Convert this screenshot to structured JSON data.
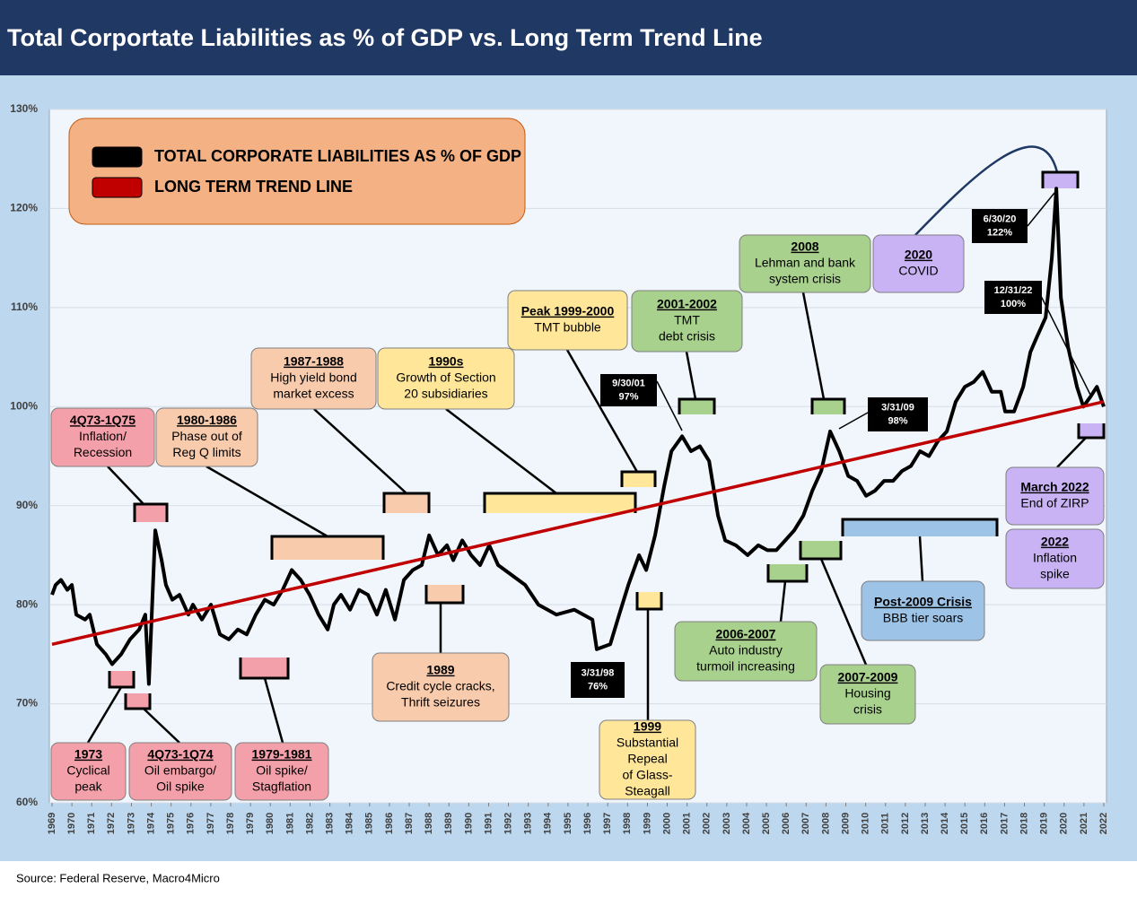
{
  "chart_data": {
    "type": "line",
    "title": "Total Corportate Liabilities as % of GDP vs. Long Term Trend Line",
    "source": "Source: Federal Reserve, Macro4Micro",
    "xlim": [
      1969,
      2022
    ],
    "xticks": [
      1969,
      1970,
      1971,
      1972,
      1973,
      1974,
      1975,
      1976,
      1977,
      1978,
      1979,
      1980,
      1981,
      1982,
      1983,
      1984,
      1985,
      1986,
      1987,
      1988,
      1989,
      1990,
      1991,
      1992,
      1993,
      1994,
      1995,
      1996,
      1997,
      1998,
      1999,
      2000,
      2001,
      2002,
      2003,
      2004,
      2005,
      2006,
      2007,
      2008,
      2009,
      2010,
      2011,
      2012,
      2013,
      2014,
      2015,
      2016,
      2017,
      2018,
      2019,
      2020,
      2021,
      2022
    ],
    "ylim": [
      60,
      130
    ],
    "yticks": [
      {
        "value": 60,
        "label": "60%"
      },
      {
        "value": 70,
        "label": "70%"
      },
      {
        "value": 80,
        "label": "80%"
      },
      {
        "value": 90,
        "label": "90%"
      },
      {
        "value": 100,
        "label": "100%"
      },
      {
        "value": 110,
        "label": "110%"
      },
      {
        "value": 120,
        "label": "120%"
      },
      {
        "value": 130,
        "label": "130%"
      }
    ],
    "grid": true,
    "legend_position": "upper left",
    "series": [
      {
        "name": "TOTAL CORPORATE LIABILITIES AS % OF GDP",
        "color": "#000000",
        "x": [
          1969,
          1969.18,
          1969.45,
          1969.77,
          1970,
          1970.22,
          1970.67,
          1970.9,
          1971.26,
          1971.71,
          1972.03,
          1972.48,
          1972.93,
          1973.39,
          1973.7,
          1973.88,
          1974.2,
          1974.52,
          1974.74,
          1975.06,
          1975.42,
          1975.87,
          1976.1,
          1976.55,
          1977.01,
          1977.46,
          1977.91,
          1978.36,
          1978.81,
          1979.27,
          1979.72,
          1980.17,
          1980.62,
          1981.08,
          1981.53,
          1981.98,
          1982.43,
          1982.89,
          1983.2,
          1983.56,
          1984.02,
          1984.47,
          1984.92,
          1985.37,
          1985.82,
          1986.28,
          1986.73,
          1987.18,
          1987.63,
          1988,
          1988.45,
          1988.9,
          1989.22,
          1989.67,
          1990.12,
          1990.57,
          1991.03,
          1991.48,
          1992.16,
          1992.84,
          1993.51,
          1994.42,
          1995.32,
          1996.23,
          1996.45,
          1997.13,
          1997.58,
          1998.04,
          1998.58,
          1998.94,
          1999.39,
          1999.85,
          2000.21,
          2000.75,
          2001.2,
          2001.65,
          2002.11,
          2002.56,
          2002.92,
          2003.46,
          2004.05,
          2004.59,
          2005.05,
          2005.5,
          2005.95,
          2006.4,
          2006.86,
          2007.31,
          2007.76,
          2008.21,
          2008.67,
          2009.12,
          2009.57,
          2010.02,
          2010.47,
          2010.93,
          2011.38,
          2011.83,
          2012.28,
          2012.74,
          2013.19,
          2013.64,
          2014.09,
          2014.54,
          2015,
          2015.45,
          2015.9,
          2016.35,
          2016.81,
          2017.03,
          2017.48,
          2017.94,
          2018.3,
          2018.62,
          2019.07,
          2019.38,
          2019.61,
          2019.84,
          2020.2,
          2020.65,
          2020.97,
          2021.33,
          2021.65,
          2022
        ],
        "values": [
          81,
          82,
          82.5,
          81.5,
          82,
          79,
          78.5,
          79,
          76,
          75,
          74,
          75,
          76.5,
          77.5,
          79,
          72,
          87.5,
          84.5,
          82,
          80.5,
          81,
          79,
          80,
          78.5,
          80,
          77,
          76.5,
          77.5,
          77,
          79,
          80.5,
          80,
          81.5,
          83.5,
          82.5,
          81,
          79,
          77.5,
          80,
          81,
          79.5,
          81.5,
          81,
          79,
          81.5,
          78.5,
          82.5,
          83.5,
          84,
          87,
          85,
          86,
          84.5,
          86.5,
          85,
          84,
          86,
          84,
          83,
          82,
          80,
          79,
          79.5,
          78.5,
          75.5,
          76,
          79,
          82,
          85,
          83.5,
          87,
          92,
          95.5,
          97,
          95.5,
          96,
          94.5,
          89,
          86.5,
          86,
          85,
          86,
          85.5,
          85.5,
          86.5,
          87.5,
          89,
          91.5,
          93.5,
          97.5,
          95.5,
          93,
          92.5,
          91,
          91.5,
          92.5,
          92.5,
          93.5,
          94,
          95.5,
          95,
          96.5,
          97.5,
          100.5,
          102,
          102.5,
          103.5,
          101.5,
          101.5,
          99.5,
          99.5,
          102,
          105.5,
          107,
          109,
          115,
          122,
          111,
          106,
          102,
          100,
          101,
          102,
          100
        ]
      },
      {
        "name": "LONG TERM TREND LINE",
        "color": "#c00000",
        "x": [
          1969,
          2022
        ],
        "values": [
          76,
          100.5
        ]
      }
    ],
    "annotations": [
      {
        "title": "4Q73-1Q75",
        "lines": [
          "Inflation/",
          "Recession"
        ],
        "color": "#f4a0aa"
      },
      {
        "title": "1980-1986",
        "lines": [
          "Phase out of",
          "Reg Q limits"
        ],
        "color": "#f8cbad"
      },
      {
        "title": "1987-1988",
        "lines": [
          "High yield bond",
          "market excess"
        ],
        "color": "#f8cbad"
      },
      {
        "title": "1990s",
        "lines": [
          "Growth of Section",
          "20 subsidiaries"
        ],
        "color": "#ffe699"
      },
      {
        "title": "Peak 1999-2000",
        "lines": [
          "TMT bubble"
        ],
        "color": "#ffe699"
      },
      {
        "title": "2001-2002",
        "lines": [
          "TMT",
          "debt crisis"
        ],
        "color": "#a9d18e"
      },
      {
        "title": "2008",
        "lines": [
          "Lehman and bank",
          "system crisis"
        ],
        "color": "#a9d18e"
      },
      {
        "title": "2020",
        "lines": [
          "COVID"
        ],
        "color": "#c9b3f5"
      },
      {
        "title": "1973",
        "lines": [
          "Cyclical",
          "peak"
        ],
        "color": "#f4a0aa"
      },
      {
        "title": "4Q73-1Q74",
        "lines": [
          "Oil embargo/",
          "Oil spike"
        ],
        "color": "#f4a0aa"
      },
      {
        "title": "1979-1981",
        "lines": [
          "Oil spike/",
          "Stagflation"
        ],
        "color": "#f4a0aa"
      },
      {
        "title": "1989",
        "lines": [
          "Credit cycle cracks,",
          "Thrift seizures"
        ],
        "color": "#f8cbad"
      },
      {
        "title": "1999",
        "lines": [
          "Substantial",
          "Repeal",
          "of Glass-",
          "Steagall"
        ],
        "color": "#ffe699"
      },
      {
        "title": "2006-2007",
        "lines": [
          "Auto industry",
          "turmoil increasing"
        ],
        "color": "#a9d18e"
      },
      {
        "title": "2007-2009",
        "lines": [
          "Housing",
          "crisis"
        ],
        "color": "#a9d18e"
      },
      {
        "title": "Post-2009 Crisis",
        "lines": [
          "BBB tier soars"
        ],
        "color": "#9dc3e6"
      },
      {
        "title": "March 2022",
        "lines": [
          "End of ZIRP"
        ],
        "color": "#c9b3f5"
      },
      {
        "title": "2022",
        "lines": [
          "Inflation",
          "spike"
        ],
        "color": "#c9b3f5"
      }
    ],
    "callouts": [
      {
        "lines": [
          "9/30/01",
          "97%"
        ]
      },
      {
        "lines": [
          "3/31/98",
          "76%"
        ]
      },
      {
        "lines": [
          "3/31/09",
          "98%"
        ]
      },
      {
        "lines": [
          "6/30/20",
          "122%"
        ]
      },
      {
        "lines": [
          "12/31/22",
          "100%"
        ]
      }
    ]
  }
}
